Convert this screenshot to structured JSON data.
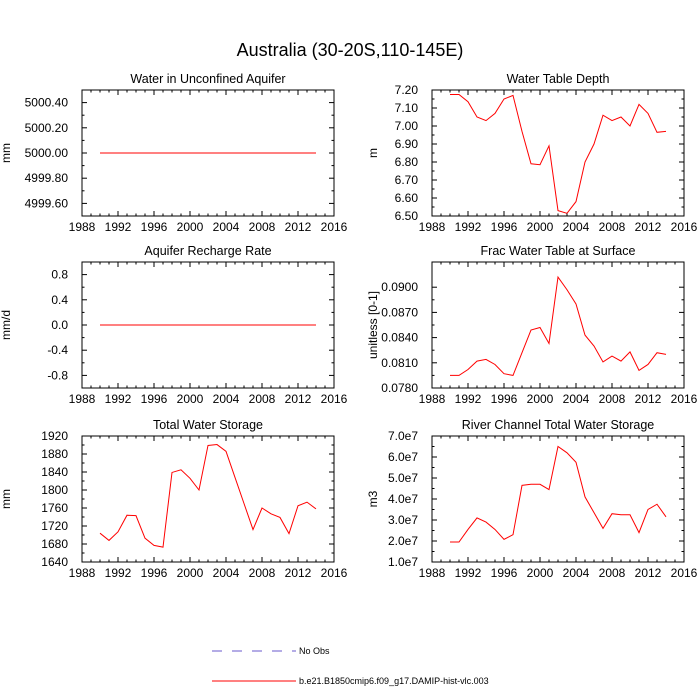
{
  "figure": {
    "title": "Australia (30-20S,110-145E)"
  },
  "legend": [
    {
      "label": "No Obs",
      "color": "#6a5acd",
      "dash": true
    },
    {
      "label": "b.e21.B1850cmip6.f09_g17.DAMIP-hist-vlc.003",
      "color": "#ff0000",
      "dash": false
    }
  ],
  "chart_data": [
    {
      "type": "line",
      "title": "Water in Unconfined Aquifer",
      "ylabel": "mm",
      "xlim": [
        1988,
        2016
      ],
      "ylim": [
        4999.5,
        5000.5
      ],
      "xticks": [
        1988,
        1992,
        1996,
        2000,
        2004,
        2008,
        2012,
        2016
      ],
      "yticks": [
        4999.6,
        4999.8,
        5000.0,
        5000.2,
        5000.4
      ],
      "ytick_labels": [
        "4999.60",
        "4999.80",
        "5000.00",
        "5000.20",
        "5000.40"
      ],
      "series": [
        {
          "color": "#ff0000",
          "x": [
            1990,
            1991,
            1992,
            1993,
            1994,
            1995,
            1996,
            1997,
            1998,
            1999,
            2000,
            2001,
            2002,
            2003,
            2004,
            2005,
            2006,
            2007,
            2008,
            2009,
            2010,
            2011,
            2012,
            2013,
            2014
          ],
          "y": [
            5000,
            5000,
            5000,
            5000,
            5000,
            5000,
            5000,
            5000,
            5000,
            5000,
            5000,
            5000,
            5000,
            5000,
            5000,
            5000,
            5000,
            5000,
            5000,
            5000,
            5000,
            5000,
            5000,
            5000,
            5000
          ]
        }
      ]
    },
    {
      "type": "line",
      "title": "Water Table Depth",
      "ylabel": "m",
      "xlim": [
        1988,
        2016
      ],
      "ylim": [
        6.5,
        7.2
      ],
      "xticks": [
        1988,
        1992,
        1996,
        2000,
        2004,
        2008,
        2012,
        2016
      ],
      "yticks": [
        6.5,
        6.6,
        6.7,
        6.8,
        6.9,
        7.0,
        7.1,
        7.2
      ],
      "ytick_labels": [
        "6.50",
        "6.60",
        "6.70",
        "6.80",
        "6.90",
        "7.00",
        "7.10",
        "7.20"
      ],
      "series": [
        {
          "color": "#ff0000",
          "x": [
            1990,
            1991,
            1992,
            1993,
            1994,
            1995,
            1996,
            1997,
            1998,
            1999,
            2000,
            2001,
            2002,
            2003,
            2004,
            2005,
            2006,
            2007,
            2008,
            2009,
            2010,
            2011,
            2012,
            2013,
            2014
          ],
          "y": [
            7.175,
            7.175,
            7.135,
            7.05,
            7.03,
            7.07,
            7.15,
            7.17,
            6.97,
            6.79,
            6.785,
            6.89,
            6.53,
            6.515,
            6.58,
            6.8,
            6.9,
            7.06,
            7.03,
            7.05,
            7.0,
            7.12,
            7.07,
            6.965,
            6.97
          ]
        }
      ]
    },
    {
      "type": "line",
      "title": "Aquifer Recharge Rate",
      "ylabel": "mm/d",
      "xlim": [
        1988,
        2016
      ],
      "ylim": [
        -1.0,
        1.0
      ],
      "xticks": [
        1988,
        1992,
        1996,
        2000,
        2004,
        2008,
        2012,
        2016
      ],
      "yticks": [
        -0.8,
        -0.4,
        0.0,
        0.4,
        0.8
      ],
      "ytick_labels": [
        "-0.8",
        "-0.4",
        "0.0",
        "0.4",
        "0.8"
      ],
      "series": [
        {
          "color": "#ff0000",
          "x": [
            1990,
            1991,
            1992,
            1993,
            1994,
            1995,
            1996,
            1997,
            1998,
            1999,
            2000,
            2001,
            2002,
            2003,
            2004,
            2005,
            2006,
            2007,
            2008,
            2009,
            2010,
            2011,
            2012,
            2013,
            2014
          ],
          "y": [
            0,
            0,
            0,
            0,
            0,
            0,
            0,
            0,
            0,
            0,
            0,
            0,
            0,
            0,
            0,
            0,
            0,
            0,
            0,
            0,
            0,
            0,
            0,
            0,
            0
          ]
        }
      ]
    },
    {
      "type": "line",
      "title": "Frac Water Table at Surface",
      "ylabel": "unitless [0-1]",
      "xlim": [
        1988,
        2016
      ],
      "ylim": [
        0.078,
        0.093
      ],
      "xticks": [
        1988,
        1992,
        1996,
        2000,
        2004,
        2008,
        2012,
        2016
      ],
      "yticks": [
        0.078,
        0.081,
        0.084,
        0.087,
        0.09
      ],
      "ytick_labels": [
        "0.0780",
        "0.0810",
        "0.0840",
        "0.0870",
        "0.0900"
      ],
      "series": [
        {
          "color": "#ff0000",
          "x": [
            1990,
            1991,
            1992,
            1993,
            1994,
            1995,
            1996,
            1997,
            1998,
            1999,
            2000,
            2001,
            2002,
            2003,
            2004,
            2005,
            2006,
            2007,
            2008,
            2009,
            2010,
            2011,
            2012,
            2013,
            2014
          ],
          "y": [
            0.0795,
            0.0795,
            0.0802,
            0.0812,
            0.0814,
            0.0808,
            0.0797,
            0.0795,
            0.0822,
            0.0849,
            0.0852,
            0.0833,
            0.0912,
            0.0897,
            0.088,
            0.0843,
            0.083,
            0.0811,
            0.0818,
            0.0812,
            0.0823,
            0.0801,
            0.0808,
            0.0822,
            0.082
          ]
        }
      ]
    },
    {
      "type": "line",
      "title": "Total Water Storage",
      "ylabel": "mm",
      "xlim": [
        1988,
        2016
      ],
      "ylim": [
        1640,
        1920
      ],
      "xticks": [
        1988,
        1992,
        1996,
        2000,
        2004,
        2008,
        2012,
        2016
      ],
      "yticks": [
        1640,
        1680,
        1720,
        1760,
        1800,
        1840,
        1880,
        1920
      ],
      "ytick_labels": [
        "1640",
        "1680",
        "1720",
        "1760",
        "1800",
        "1840",
        "1880",
        "1920"
      ],
      "series": [
        {
          "color": "#ff0000",
          "x": [
            1990,
            1991,
            1992,
            1993,
            1994,
            1995,
            1996,
            1997,
            1998,
            1999,
            2000,
            2001,
            2002,
            2003,
            2004,
            2005,
            2006,
            2007,
            2008,
            2009,
            2010,
            2011,
            2012,
            2013,
            2014
          ],
          "y": [
            1704,
            1688,
            1707,
            1744,
            1743,
            1693,
            1677,
            1673,
            1839,
            1845,
            1826,
            1800,
            1899,
            1901,
            1886,
            1828,
            1770,
            1712,
            1760,
            1747,
            1739,
            1703,
            1765,
            1773,
            1758
          ]
        }
      ]
    },
    {
      "type": "line",
      "title": "River Channel Total Water Storage",
      "ylabel": "m3",
      "xlim": [
        1988,
        2016
      ],
      "ylim": [
        10000000,
        70000000
      ],
      "xticks": [
        1988,
        1992,
        1996,
        2000,
        2004,
        2008,
        2012,
        2016
      ],
      "yticks": [
        10000000,
        20000000,
        30000000,
        40000000,
        50000000,
        60000000,
        70000000
      ],
      "ytick_labels": [
        "1.0e7",
        "2.0e7",
        "3.0e7",
        "4.0e7",
        "5.0e7",
        "6.0e7",
        "7.0e7"
      ],
      "series": [
        {
          "color": "#ff0000",
          "x": [
            1990,
            1991,
            1992,
            1993,
            1994,
            1995,
            1996,
            1997,
            1998,
            1999,
            2000,
            2001,
            2002,
            2003,
            2004,
            2005,
            2006,
            2007,
            2008,
            2009,
            2010,
            2011,
            2012,
            2013,
            2014
          ],
          "y": [
            19500000,
            19500000,
            25500000,
            31000000,
            29000000,
            25500000,
            20800000,
            23000000,
            46500000,
            47000000,
            47000000,
            44500000,
            65000000,
            62000000,
            57500000,
            41000000,
            33500000,
            26000000,
            33000000,
            32500000,
            32500000,
            24000000,
            35000000,
            37500000,
            31500000
          ]
        }
      ]
    }
  ]
}
